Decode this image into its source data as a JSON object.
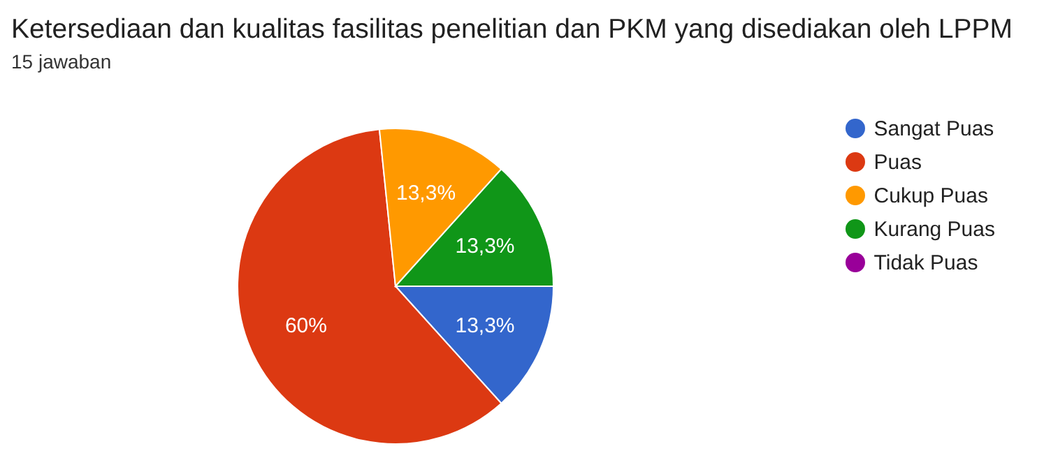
{
  "chart_data": {
    "type": "pie",
    "title": "Ketersediaan dan kualitas fasilitas penelitian dan PKM yang disediakan oleh LPPM",
    "subtitle": "15 jawaban",
    "categories": [
      "Sangat Puas",
      "Puas",
      "Cukup Puas",
      "Kurang Puas",
      "Tidak Puas"
    ],
    "values": [
      13.3,
      60,
      13.3,
      13.3,
      0
    ],
    "value_labels": [
      "13,3%",
      "60%",
      "13,3%",
      "13,3%",
      null
    ],
    "colors": [
      "#3366cc",
      "#dc3912",
      "#ff9900",
      "#109618",
      "#990099"
    ],
    "legend": "right"
  }
}
